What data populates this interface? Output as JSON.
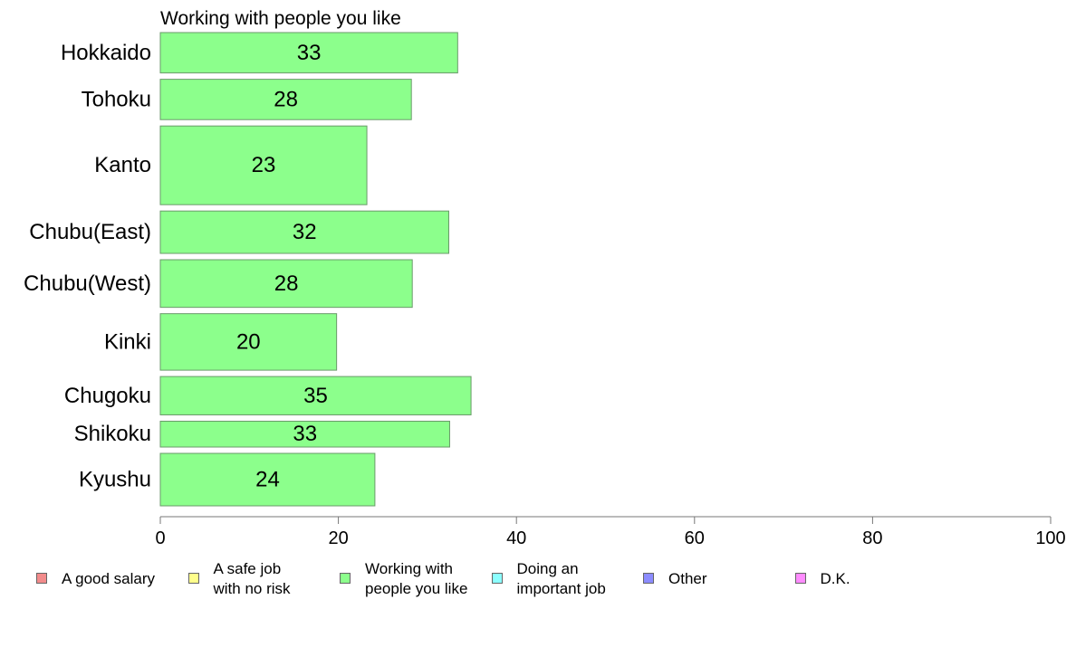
{
  "chart_data": {
    "type": "bar",
    "orientation": "horizontal",
    "title": "Working with people you like",
    "categories": [
      "Hokkaido",
      "Tohoku",
      "Kanto",
      "Chubu(East)",
      "Chubu(West)",
      "Kinki",
      "Chugoku",
      "Shikoku",
      "Kyushu"
    ],
    "values": [
      33.4,
      28.2,
      23.2,
      32.4,
      28.3,
      19.8,
      34.9,
      32.5,
      24.1
    ],
    "data_labels": [
      "33",
      "28",
      "23",
      "32",
      "28",
      "20",
      "35",
      "33",
      "24"
    ],
    "bar_thickness_weights": [
      1.0,
      1.0,
      1.95,
      1.05,
      1.18,
      1.4,
      0.95,
      0.64,
      1.3
    ],
    "bar_color": "#8cff8c",
    "xlim": [
      0,
      100
    ],
    "xticks": [
      0,
      20,
      40,
      60,
      80,
      100
    ],
    "xlabel": "",
    "ylabel": "",
    "grid": false,
    "legend_position": "bottom",
    "legend": [
      {
        "label": "A good salary",
        "color": "#f28b8b"
      },
      {
        "label": "A safe job\nwith no risk",
        "color": "#ffff8c"
      },
      {
        "label": "Working with\npeople you like",
        "color": "#8cff8c"
      },
      {
        "label": "Doing an\nimportant job",
        "color": "#8cffff"
      },
      {
        "label": "Other",
        "color": "#8c8cff"
      },
      {
        "label": "D.K.",
        "color": "#ff8cff"
      }
    ]
  }
}
